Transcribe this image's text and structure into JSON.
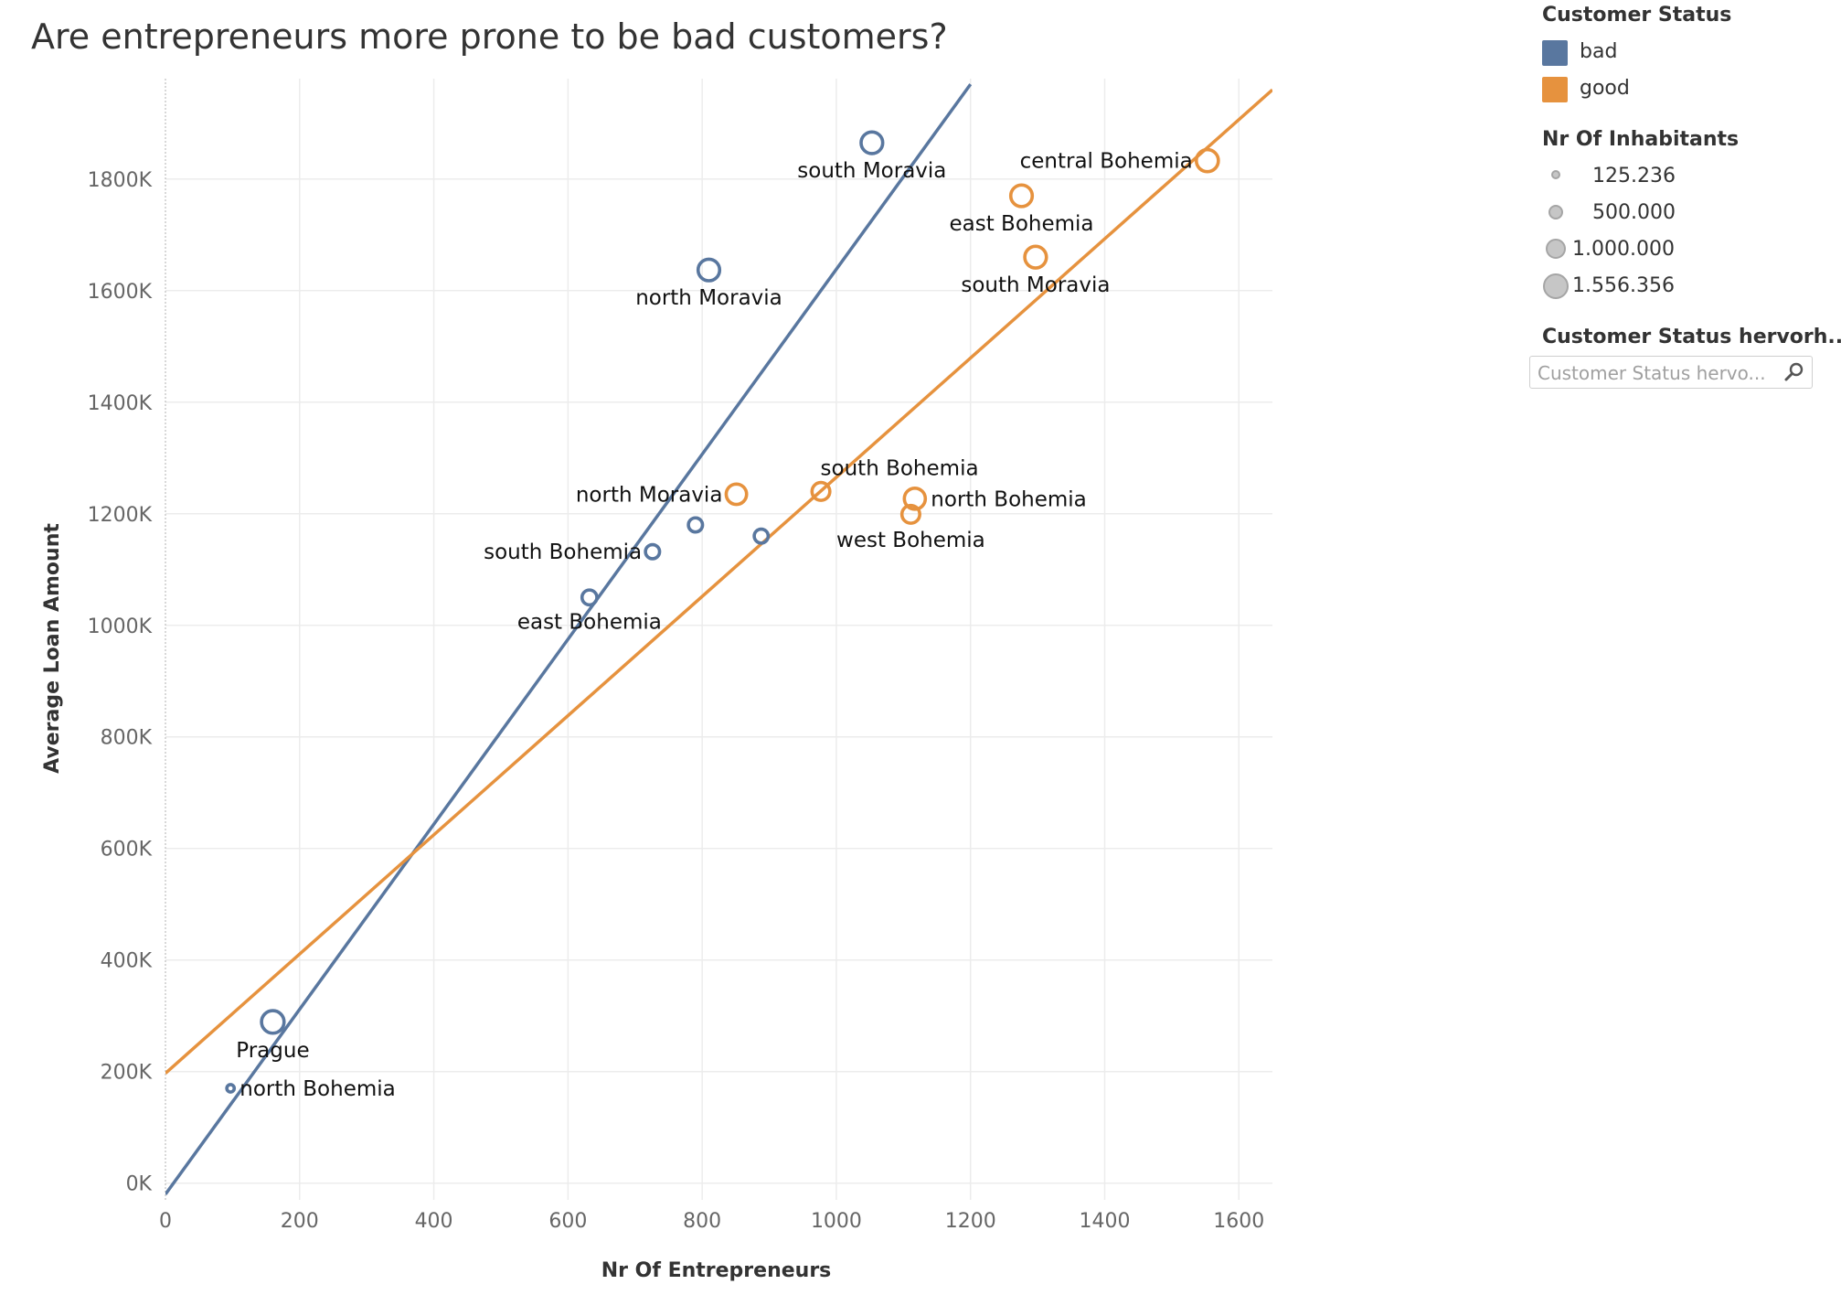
{
  "title": "Are entrepreneurs more prone to be bad customers?",
  "colors": {
    "bad": "#59779f",
    "good": "#e6923e",
    "grid": "#ececec",
    "axis_text": "#666666",
    "label_text": "#111111"
  },
  "legend": {
    "status_title": "Customer Status",
    "status_items": [
      {
        "label": "bad",
        "color": "#59779f"
      },
      {
        "label": "good",
        "color": "#e6923e"
      }
    ],
    "size_title": "Nr Of Inhabitants",
    "size_items": [
      {
        "label": "125.236",
        "value": 125236
      },
      {
        "label": "500.000",
        "value": 500000
      },
      {
        "label": "1.000.000",
        "value": 1000000
      },
      {
        "label": "1.556.356",
        "value": 1556356
      }
    ],
    "filter_title": "Customer Status hervorh...",
    "filter_placeholder": "Customer Status hervo...",
    "filter_icon": "search-icon"
  },
  "chart_data": {
    "type": "scatter",
    "xlabel": "Nr Of Entrepreneurs",
    "ylabel": "Average Loan Amount",
    "xlim": [
      0,
      1650
    ],
    "ylim": [
      -30000,
      1980000
    ],
    "x_ticks": [
      0,
      200,
      400,
      600,
      800,
      1000,
      1200,
      1400,
      1600
    ],
    "x_tick_labels": [
      "0",
      "200",
      "400",
      "600",
      "800",
      "1000",
      "1200",
      "1400",
      "1600"
    ],
    "y_ticks": [
      0,
      200000,
      400000,
      600000,
      800000,
      1000000,
      1200000,
      1400000,
      1600000,
      1800000
    ],
    "y_tick_labels": [
      "0K",
      "200K",
      "400K",
      "600K",
      "800K",
      "1000K",
      "1200K",
      "1400K",
      "1600K",
      "1800K"
    ],
    "grid": true,
    "legend_position": "right",
    "series": [
      {
        "name": "bad",
        "color": "#59779f",
        "points": [
          {
            "x": 1053,
            "y": 1865000,
            "size": 1060000,
            "label": "south Moravia",
            "label_pos": "below"
          },
          {
            "x": 810,
            "y": 1637000,
            "size": 1050000,
            "label": "north Moravia",
            "label_pos": "below"
          },
          {
            "x": 790,
            "y": 1180000,
            "size": 450000,
            "label": "",
            "label_pos": "none"
          },
          {
            "x": 888,
            "y": 1160000,
            "size": 440000,
            "label": "",
            "label_pos": "none"
          },
          {
            "x": 726,
            "y": 1132000,
            "size": 450000,
            "label": "south Bohemia",
            "label_pos": "left"
          },
          {
            "x": 632,
            "y": 1050000,
            "size": 500000,
            "label": "east Bohemia",
            "label_pos": "below"
          },
          {
            "x": 160,
            "y": 289000,
            "size": 1150000,
            "label": "Prague",
            "label_pos": "below"
          },
          {
            "x": 97,
            "y": 170000,
            "size": 125236,
            "label": "north Bohemia",
            "label_pos": "right"
          }
        ],
        "trend": {
          "x": [
            0,
            1200
          ],
          "y": [
            -20000,
            1970000
          ]
        }
      },
      {
        "name": "good",
        "color": "#e6923e",
        "points": [
          {
            "x": 1553,
            "y": 1833000,
            "size": 1100000,
            "label": "central Bohemia",
            "label_pos": "left"
          },
          {
            "x": 1276,
            "y": 1770000,
            "size": 1050000,
            "label": "east Bohemia",
            "label_pos": "below"
          },
          {
            "x": 1297,
            "y": 1660000,
            "size": 1060000,
            "label": "south Moravia",
            "label_pos": "below"
          },
          {
            "x": 851,
            "y": 1235000,
            "size": 940000,
            "label": "north Moravia",
            "label_pos": "left"
          },
          {
            "x": 977,
            "y": 1240000,
            "size": 720000,
            "label": "south Bohemia",
            "label_pos": "above"
          },
          {
            "x": 1117,
            "y": 1227000,
            "size": 1000000,
            "label": "north Bohemia",
            "label_pos": "right"
          },
          {
            "x": 1111,
            "y": 1199000,
            "size": 720000,
            "label": "west Bohemia",
            "label_pos": "below"
          }
        ],
        "trend": {
          "x": [
            0,
            1650
          ],
          "y": [
            197000,
            1960000
          ]
        }
      }
    ]
  }
}
